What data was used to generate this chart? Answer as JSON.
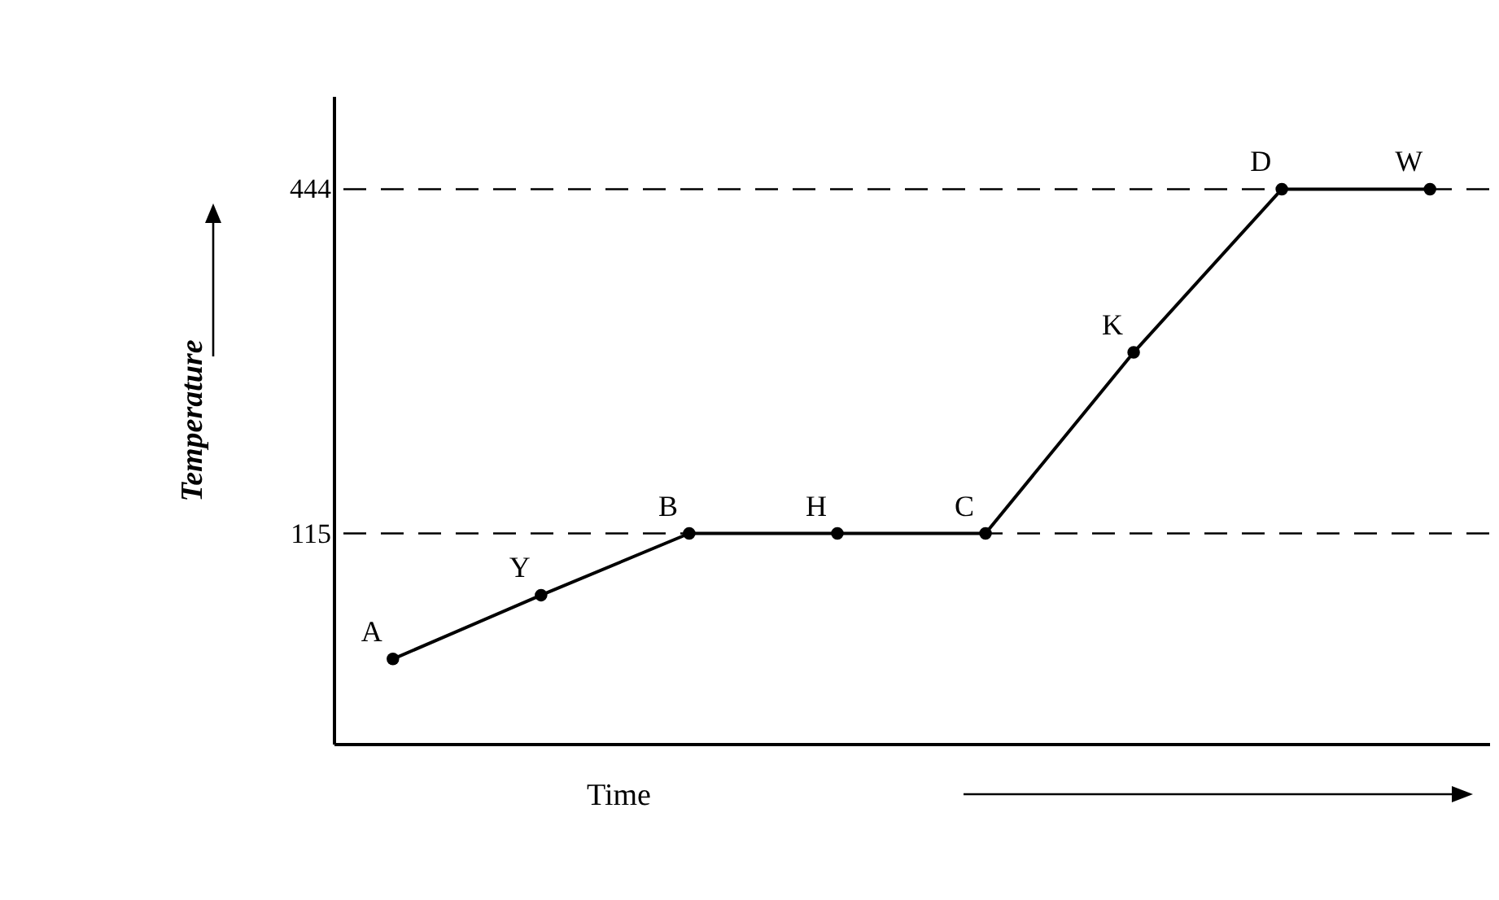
{
  "chart_data": {
    "type": "line",
    "xlabel": "Time",
    "ylabel": "Temperature",
    "categories": [
      null,
      null,
      null,
      null,
      null,
      null,
      null,
      null
    ],
    "series": [
      {
        "color": "#000000",
        "values": [
          -5,
          56,
          115,
          115,
          115,
          288,
          444,
          444
        ],
        "value_labels": [
          "A",
          "Y",
          "B",
          "H",
          "C",
          "K",
          "D",
          "W"
        ]
      }
    ],
    "ylim": [
      -86,
      533
    ],
    "yticks": [
      115,
      444
    ],
    "ref_lines": [
      {
        "axis": "y",
        "value": 115,
        "line_style": "dashed",
        "color": "#000000"
      },
      {
        "axis": "y",
        "value": 444,
        "line_style": "dashed",
        "color": "#000000"
      }
    ],
    "grid": false,
    "marker": "circle",
    "line_style": "solid"
  }
}
